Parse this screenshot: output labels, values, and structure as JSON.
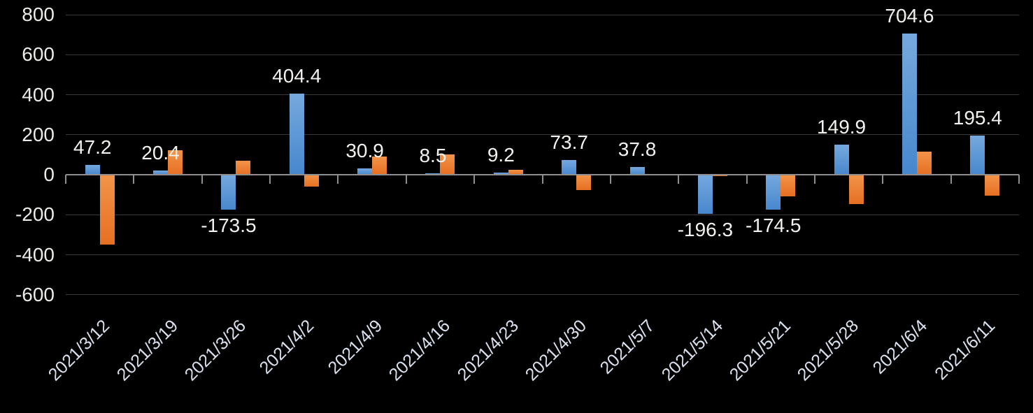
{
  "chart_data": {
    "type": "bar",
    "title": "",
    "xlabel": "",
    "ylabel": "",
    "categories": [
      "2021/3/12",
      "2021/3/19",
      "2021/3/26",
      "2021/4/2",
      "2021/4/9",
      "2021/4/16",
      "2021/4/23",
      "2021/4/30",
      "2021/5/7",
      "2021/5/14",
      "2021/5/21",
      "2021/5/28",
      "2021/6/4",
      "2021/6/11"
    ],
    "series": [
      {
        "name": "blue-series",
        "color": "#5B9BD5",
        "values": [
          47.2,
          20.4,
          -173.5,
          404.4,
          30.9,
          8.5,
          9.2,
          73.7,
          37.8,
          -196.3,
          -174.5,
          149.9,
          704.6,
          195.4
        ]
      },
      {
        "name": "orange-series",
        "color": "#ED7D31",
        "values": [
          -350,
          123,
          70,
          -60,
          92,
          100,
          24,
          -76,
          0,
          -7,
          -110,
          -145,
          117,
          -104
        ]
      }
    ],
    "data_labels": {
      "labeled_series": "blue-series",
      "values": [
        "47.2",
        "20.4",
        "-173.5",
        "404.4",
        "30.9",
        "8.5",
        "9.2",
        "73.7",
        "37.8",
        "-196.3",
        "-174.5",
        "149.9",
        "704.6",
        "195.4"
      ]
    },
    "y_axis": {
      "tick_labels": [
        "800",
        "600",
        "400",
        "200",
        "0",
        "-200",
        "-400",
        "-600"
      ],
      "tick_values": [
        800,
        600,
        400,
        200,
        0,
        -200,
        -400,
        -600
      ],
      "ylim": [
        -600,
        800
      ]
    },
    "x_axis": {
      "label_rotation_deg": -45
    },
    "grid": true,
    "legend": "none"
  },
  "colors": {
    "background": "#000000",
    "gridline": "#3a3a3a",
    "axis_line": "#8e8e8e",
    "blue_series": "#5B9BD5",
    "orange_series": "#ED7D31",
    "data_label_text": "#f4f2ee",
    "y_axis_label_text": "#edebe7",
    "x_axis_label_text": "#d9e1ee"
  }
}
